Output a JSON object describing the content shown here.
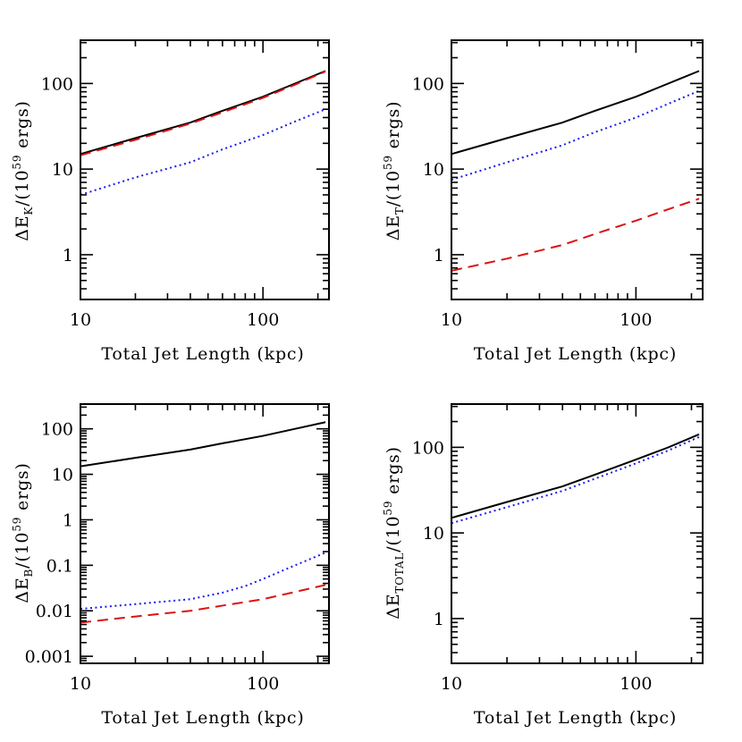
{
  "chart_data": [
    {
      "type": "line",
      "id": "kinetic",
      "xlabel": "Total Jet Length (kpc)",
      "ylabel_main": "ΔE",
      "ylabel_sub": "K",
      "ylabel_tail": "/(10",
      "ylabel_exp": "59",
      "ylabel_unit": " ergs)",
      "xscale": "log",
      "yscale": "log",
      "xlim": [
        10,
        230
      ],
      "ylim": [
        0.3,
        320
      ],
      "xticks": [
        {
          "v": 10,
          "label": "10"
        },
        {
          "v": 100,
          "label": "100"
        }
      ],
      "yticks": [
        {
          "v": 1,
          "label": "1"
        },
        {
          "v": 10,
          "label": "10"
        },
        {
          "v": 100,
          "label": "100"
        }
      ],
      "series": [
        {
          "style": "solid",
          "color": "#000000",
          "x": [
            10,
            20,
            40,
            60,
            100,
            150,
            220
          ],
          "y": [
            15,
            23,
            35,
            48,
            70,
            100,
            140
          ]
        },
        {
          "style": "dashed",
          "color": "#dd1111",
          "x": [
            10,
            20,
            40,
            60,
            100,
            150,
            220
          ],
          "y": [
            14.5,
            22,
            34,
            46,
            68,
            97,
            138
          ]
        },
        {
          "style": "dotted",
          "color": "#1a1aee",
          "x": [
            10,
            20,
            40,
            60,
            100,
            150,
            220
          ],
          "y": [
            5,
            8,
            12,
            17,
            25,
            36,
            50
          ]
        }
      ]
    },
    {
      "type": "line",
      "id": "thermal",
      "xlabel": "Total Jet Length (kpc)",
      "ylabel_main": "ΔE",
      "ylabel_sub": "T",
      "ylabel_tail": "/(10",
      "ylabel_exp": "59",
      "ylabel_unit": " ergs)",
      "xscale": "log",
      "yscale": "log",
      "xlim": [
        10,
        230
      ],
      "ylim": [
        0.3,
        320
      ],
      "xticks": [
        {
          "v": 10,
          "label": "10"
        },
        {
          "v": 100,
          "label": "100"
        }
      ],
      "yticks": [
        {
          "v": 1,
          "label": "1"
        },
        {
          "v": 10,
          "label": "10"
        },
        {
          "v": 100,
          "label": "100"
        }
      ],
      "series": [
        {
          "style": "solid",
          "color": "#000000",
          "x": [
            10,
            20,
            40,
            60,
            100,
            150,
            220
          ],
          "y": [
            15,
            23,
            35,
            48,
            70,
            100,
            140
          ]
        },
        {
          "style": "dotted",
          "color": "#1a1aee",
          "x": [
            10,
            20,
            40,
            60,
            100,
            150,
            220
          ],
          "y": [
            7.5,
            12,
            19,
            27,
            40,
            58,
            82
          ]
        },
        {
          "style": "dashed",
          "color": "#dd1111",
          "x": [
            10,
            20,
            40,
            60,
            100,
            150,
            220
          ],
          "y": [
            0.65,
            0.9,
            1.3,
            1.75,
            2.5,
            3.4,
            4.5
          ]
        }
      ]
    },
    {
      "type": "line",
      "id": "magnetic",
      "xlabel": "Total Jet Length (kpc)",
      "ylabel_main": "ΔE",
      "ylabel_sub": "B",
      "ylabel_tail": "/(10",
      "ylabel_exp": "59",
      "ylabel_unit": " ergs)",
      "xscale": "log",
      "yscale": "log",
      "xlim": [
        10,
        230
      ],
      "ylim": [
        0.0007,
        350
      ],
      "xticks": [
        {
          "v": 10,
          "label": "10"
        },
        {
          "v": 100,
          "label": "100"
        }
      ],
      "yticks": [
        {
          "v": 0.001,
          "label": "0.001"
        },
        {
          "v": 0.01,
          "label": "0.01"
        },
        {
          "v": 0.1,
          "label": "0.1"
        },
        {
          "v": 1,
          "label": "1"
        },
        {
          "v": 10,
          "label": "10"
        },
        {
          "v": 100,
          "label": "100"
        }
      ],
      "series": [
        {
          "style": "solid",
          "color": "#000000",
          "x": [
            10,
            20,
            40,
            60,
            100,
            150,
            220
          ],
          "y": [
            15,
            23,
            35,
            48,
            70,
            100,
            140
          ]
        },
        {
          "style": "dotted",
          "color": "#1a1aee",
          "x": [
            10,
            20,
            40,
            60,
            80,
            100,
            150,
            220
          ],
          "y": [
            0.011,
            0.014,
            0.018,
            0.025,
            0.035,
            0.05,
            0.1,
            0.19
          ]
        },
        {
          "style": "dashed",
          "color": "#dd1111",
          "x": [
            10,
            20,
            40,
            60,
            100,
            150,
            220
          ],
          "y": [
            0.0055,
            0.0075,
            0.01,
            0.013,
            0.018,
            0.026,
            0.037
          ]
        }
      ]
    },
    {
      "type": "line",
      "id": "total",
      "xlabel": "Total Jet Length (kpc)",
      "ylabel_main": "ΔE",
      "ylabel_sub": "TOTAL",
      "ylabel_tail": "/(10",
      "ylabel_exp": "59",
      "ylabel_unit": " ergs)",
      "xscale": "log",
      "yscale": "log",
      "xlim": [
        10,
        230
      ],
      "ylim": [
        0.3,
        320
      ],
      "xticks": [
        {
          "v": 10,
          "label": "10"
        },
        {
          "v": 100,
          "label": "100"
        }
      ],
      "yticks": [
        {
          "v": 1,
          "label": "1"
        },
        {
          "v": 10,
          "label": "10"
        },
        {
          "v": 100,
          "label": "100"
        }
      ],
      "series": [
        {
          "style": "solid",
          "color": "#000000",
          "x": [
            10,
            20,
            40,
            60,
            100,
            150,
            220
          ],
          "y": [
            15,
            23,
            35,
            48,
            72,
            100,
            142
          ]
        },
        {
          "style": "dotted",
          "color": "#1a1aee",
          "x": [
            10,
            20,
            40,
            60,
            100,
            150,
            220
          ],
          "y": [
            13,
            20,
            31,
            43,
            65,
            92,
            132
          ]
        }
      ]
    }
  ]
}
